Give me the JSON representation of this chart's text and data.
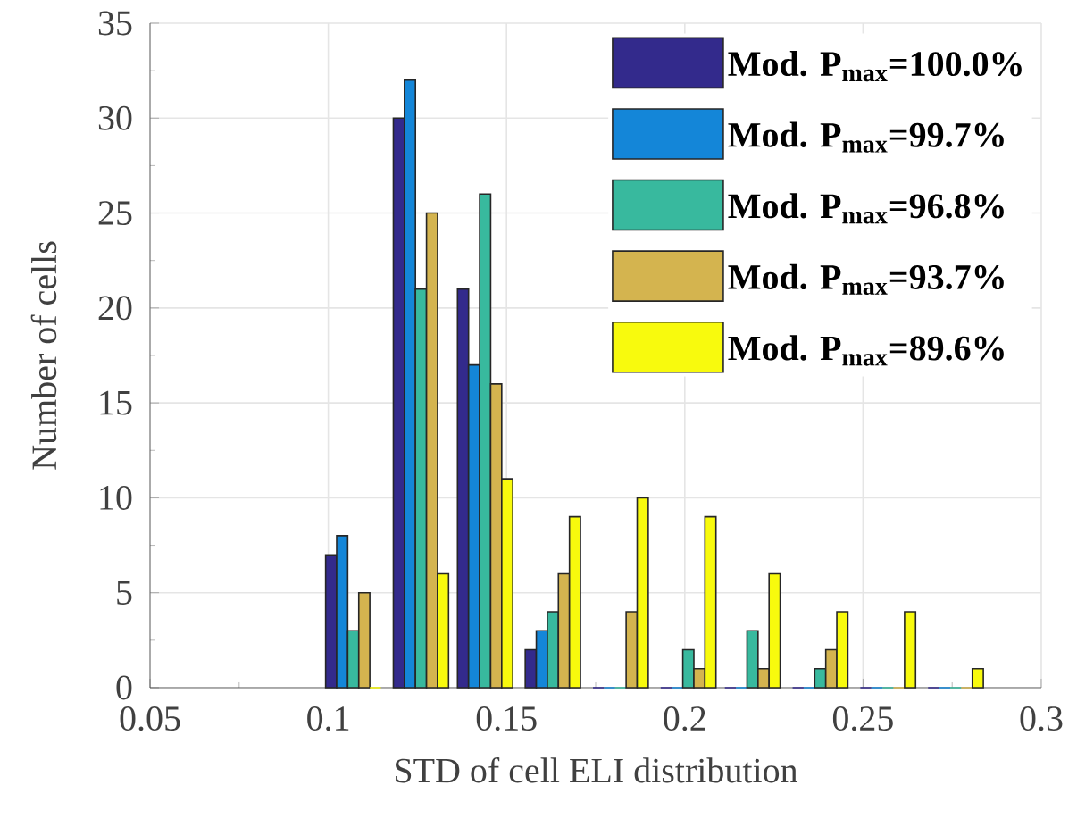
{
  "chart_data": {
    "type": "bar",
    "xlabel": "STD of cell ELI distribution",
    "ylabel": "Number of cells",
    "x": [
      0.107,
      0.126,
      0.144,
      0.163,
      0.182,
      0.201,
      0.219,
      0.238,
      0.257,
      0.276
    ],
    "series": [
      {
        "name": "Mod. P$_{max}$=100.0%",
        "color": "#332a8c",
        "values": [
          7,
          30,
          21,
          2,
          0,
          0,
          0,
          0,
          0,
          0
        ]
      },
      {
        "name": "Mod. P$_{max}$=99.7%",
        "color": "#1486d8",
        "values": [
          8,
          32,
          17,
          3,
          0,
          0,
          0,
          0,
          0,
          0
        ]
      },
      {
        "name": "Mod. P$_{max}$=96.8%",
        "color": "#38b99e",
        "values": [
          3,
          21,
          26,
          4,
          0,
          2,
          3,
          1,
          0,
          0
        ]
      },
      {
        "name": "Mod. P$_{max}$=93.7%",
        "color": "#d4b44f",
        "values": [
          5,
          25,
          16,
          6,
          4,
          1,
          1,
          2,
          0,
          0
        ]
      },
      {
        "name": "Mod. P$_{max}$=89.6%",
        "color": "#f8fa0d",
        "values": [
          0,
          6,
          11,
          9,
          10,
          9,
          6,
          4,
          4,
          1
        ]
      }
    ],
    "xlim": [
      0.05,
      0.3
    ],
    "xticks": [
      0.05,
      0.1,
      0.15,
      0.2,
      0.25,
      0.3
    ],
    "ylim": [
      0,
      35
    ],
    "yticks": [
      0,
      5,
      10,
      15,
      20,
      25,
      30,
      35
    ],
    "grid": true,
    "legend": "top right"
  }
}
